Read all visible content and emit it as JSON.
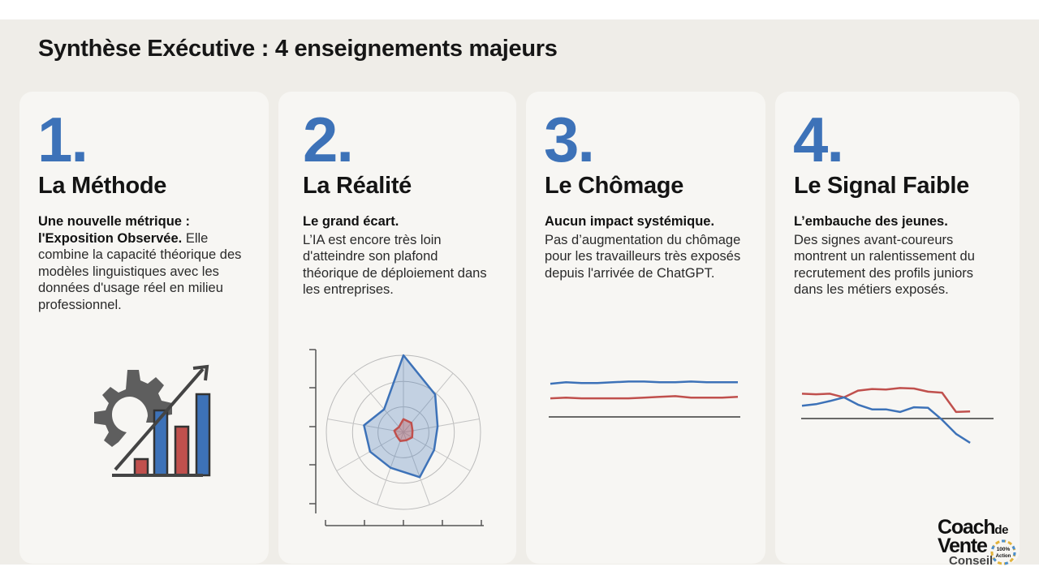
{
  "header": {
    "title": "Synthèse Exécutive : 4 enseignements majeurs"
  },
  "cards": [
    {
      "number": "1.",
      "title": "La Méthode",
      "lead": "Une nouvelle métrique : l'Exposition Observée.",
      "text": "Elle combine la capacité théorique des modèles linguistiques avec les données d'usage réel en milieu professionnel.",
      "illustration_icon": "gear-growth-chart-icon"
    },
    {
      "number": "2.",
      "title": "La Réalité",
      "lead": "Le grand écart.",
      "text": "L’IA est encore très loin d'atteindre son plafond théorique de déploiement dans les entreprises."
    },
    {
      "number": "3.",
      "title": "Le Chômage",
      "lead": "Aucun impact systémique.",
      "text": "Pas d’augmentation du chômage pour les travailleurs très exposés depuis l'arrivée de ChatGPT."
    },
    {
      "number": "4.",
      "title": "Le Signal Faible",
      "lead": "L’embauche des jeunes.",
      "text": "Des signes avant-coureurs montrent un ralentissement du recrutement des profils juniors dans les métiers exposés."
    }
  ],
  "colors": {
    "accent_blue": "#3d72b8",
    "accent_red": "#c0504d",
    "background": "#efede8",
    "card": "#f7f6f3"
  },
  "chart_data": [
    {
      "type": "bar",
      "categories": [
        "1",
        "2",
        "3",
        "4"
      ],
      "values": [
        1,
        4,
        3,
        5
      ]
    },
    {
      "type": "radar",
      "series": [
        {
          "values": [
            10,
            6.4,
            4.5,
            4.6,
            6.2,
            4.9,
            5,
            5.2,
            3.9
          ]
        },
        {
          "values": [
            1.7,
            1.6,
            1.2,
            1.3,
            1.1,
            1.2,
            1.0,
            1.2,
            0.9
          ]
        }
      ]
    },
    {
      "type": "line",
      "x": [
        0,
        1,
        2,
        3,
        4,
        5,
        6,
        7,
        8,
        9,
        10,
        11,
        12
      ],
      "series": [
        {
          "values": [
            0.41,
            0.43,
            0.42,
            0.42,
            0.43,
            0.44,
            0.44,
            0.43,
            0.43,
            0.44,
            0.43,
            0.43,
            0.43
          ]
        },
        {
          "values": [
            0.21,
            0.22,
            0.21,
            0.21,
            0.21,
            0.21,
            0.22,
            0.23,
            0.24,
            0.22,
            0.22,
            0.22,
            0.23
          ]
        }
      ]
    },
    {
      "type": "line",
      "x": [
        0,
        1,
        2,
        3,
        4,
        5,
        6,
        7,
        8,
        9,
        10,
        11,
        12,
        13,
        14
      ],
      "series": [
        {
          "values": [
            0.62,
            0.61,
            0.62,
            0.55,
            0.68,
            0.71,
            0.7,
            0.73,
            0.72,
            0.66,
            0.64,
            0.27,
            0.28,
            null,
            null
          ]
        },
        {
          "values": [
            0.39,
            0.42,
            0.48,
            0.55,
            0.41,
            0.32,
            0.32,
            0.27,
            0.36,
            0.35,
            0.12,
            -0.15,
            -0.32,
            null,
            null
          ]
        }
      ]
    }
  ],
  "logo": {
    "line1": "Coach",
    "line1_suffix": "de",
    "line2": "Vente",
    "line3": "Conseil",
    "badge_top": "100%",
    "badge_bottom": "Action"
  }
}
